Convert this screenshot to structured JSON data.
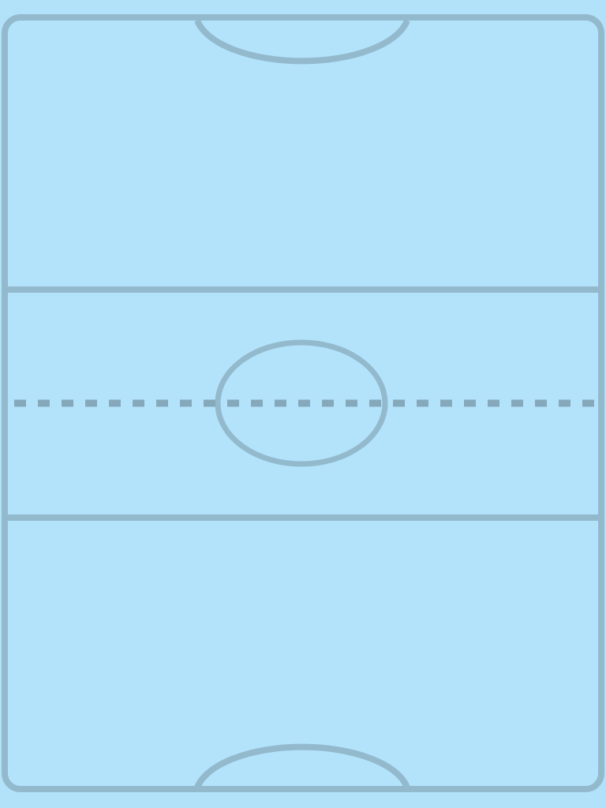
{
  "game": {
    "type": "air-hockey-table",
    "players": [],
    "score": {}
  },
  "colors": {
    "background": "#b2e2fa",
    "ice": "#b3e3fb",
    "line": "#93b9cd",
    "center_dash": "#85a8ba"
  }
}
